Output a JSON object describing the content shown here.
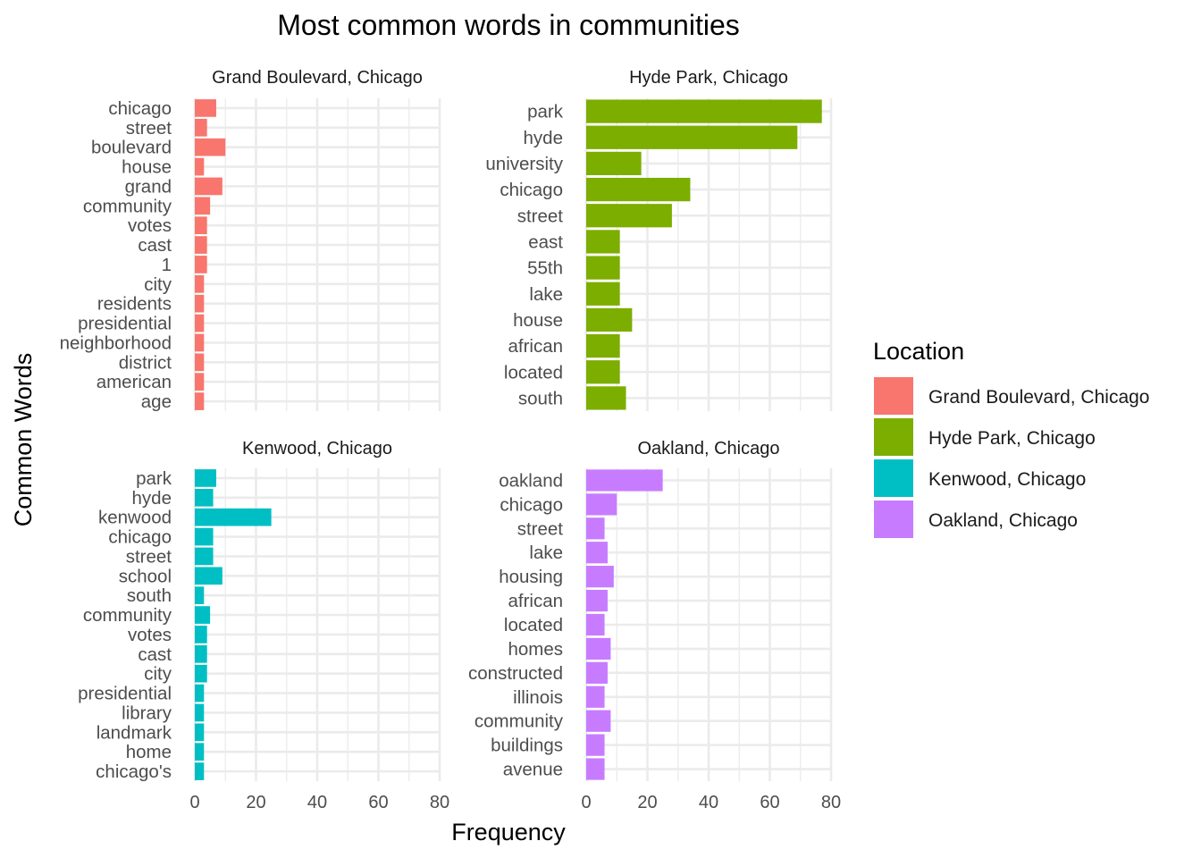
{
  "chart_data": {
    "type": "bar",
    "orientation": "horizontal",
    "title": "Most common words in communities",
    "xlabel": "Frequency",
    "ylabel": "Common Words",
    "xlim": [
      0,
      80
    ],
    "xticks": [
      0,
      20,
      40,
      60,
      80
    ],
    "grid": true,
    "legend": {
      "title": "Location",
      "position": "right",
      "entries": [
        {
          "name": "Grand Boulevard, Chicago",
          "color": "#F8766D"
        },
        {
          "name": "Hyde Park, Chicago",
          "color": "#7CAE00"
        },
        {
          "name": "Kenwood, Chicago",
          "color": "#00BFC4"
        },
        {
          "name": "Oakland, Chicago",
          "color": "#C77CFF"
        }
      ]
    },
    "panels": [
      {
        "name": "Grand Boulevard, Chicago",
        "color": "#F8766D",
        "categories": [
          "chicago",
          "street",
          "boulevard",
          "house",
          "grand",
          "community",
          "votes",
          "cast",
          "1",
          "city",
          "residents",
          "presidential",
          "neighborhood",
          "district",
          "american",
          "age"
        ],
        "values": [
          7,
          4,
          10,
          3,
          9,
          5,
          4,
          4,
          4,
          3,
          3,
          3,
          3,
          3,
          3,
          3
        ]
      },
      {
        "name": "Hyde Park, Chicago",
        "color": "#7CAE00",
        "categories": [
          "park",
          "hyde",
          "university",
          "chicago",
          "street",
          "east",
          "55th",
          "lake",
          "house",
          "african",
          "located",
          "south"
        ],
        "values": [
          77,
          69,
          18,
          34,
          28,
          11,
          11,
          11,
          15,
          11,
          11,
          13
        ]
      },
      {
        "name": "Kenwood, Chicago",
        "color": "#00BFC4",
        "categories": [
          "park",
          "hyde",
          "kenwood",
          "chicago",
          "street",
          "school",
          "south",
          "community",
          "votes",
          "cast",
          "city",
          "presidential",
          "library",
          "landmark",
          "home",
          "chicago's"
        ],
        "values": [
          7,
          6,
          25,
          6,
          6,
          9,
          3,
          5,
          4,
          4,
          4,
          3,
          3,
          3,
          3,
          3
        ]
      },
      {
        "name": "Oakland, Chicago",
        "color": "#C77CFF",
        "categories": [
          "oakland",
          "chicago",
          "street",
          "lake",
          "housing",
          "african",
          "located",
          "homes",
          "constructed",
          "illinois",
          "community",
          "buildings",
          "avenue"
        ],
        "values": [
          25,
          10,
          6,
          7,
          9,
          7,
          6,
          8,
          7,
          6,
          8,
          6,
          6
        ]
      }
    ]
  }
}
